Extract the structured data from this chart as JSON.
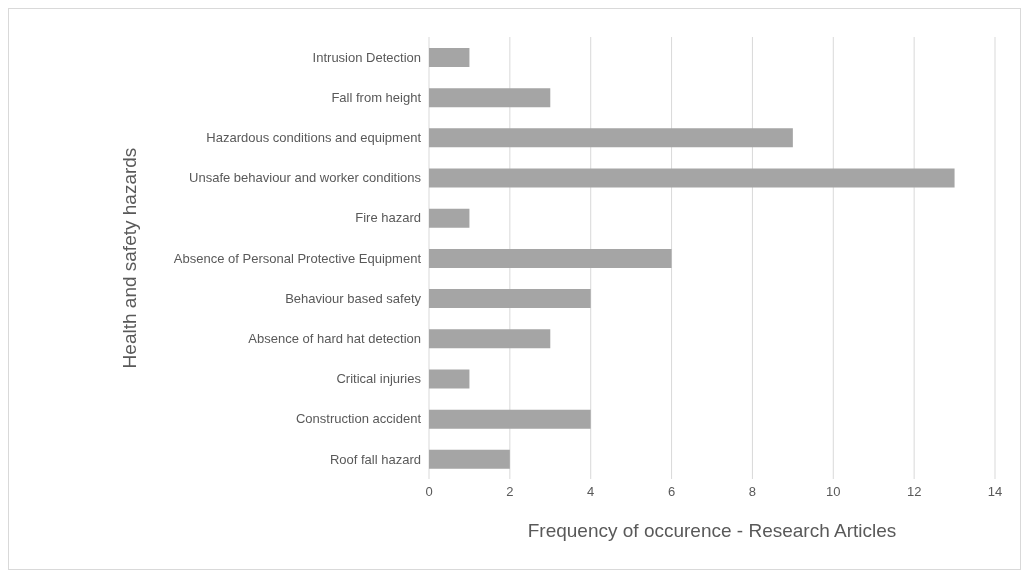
{
  "chart_data": {
    "type": "bar",
    "orientation": "horizontal",
    "xlabel": "Frequency of occurence - Research Articles",
    "ylabel": "Health and safety hazards",
    "categories": [
      "Intrusion Detection",
      "Fall from height",
      "Hazardous conditions and  equipment",
      "Unsafe behaviour and worker conditions",
      "Fire hazard",
      "Absence of Personal Protective Equipment",
      "Behaviour based safety",
      "Absence of hard hat detection",
      "Critical injuries",
      "Construction accident",
      "Roof fall hazard"
    ],
    "values": [
      1,
      3,
      9,
      13,
      1,
      6,
      4,
      3,
      1,
      4,
      2
    ],
    "color": "#a5a5a5",
    "xlim": [
      0,
      14
    ],
    "xticks": [
      0,
      2,
      4,
      6,
      8,
      10,
      12,
      14
    ],
    "grid": "x",
    "legend": false
  }
}
